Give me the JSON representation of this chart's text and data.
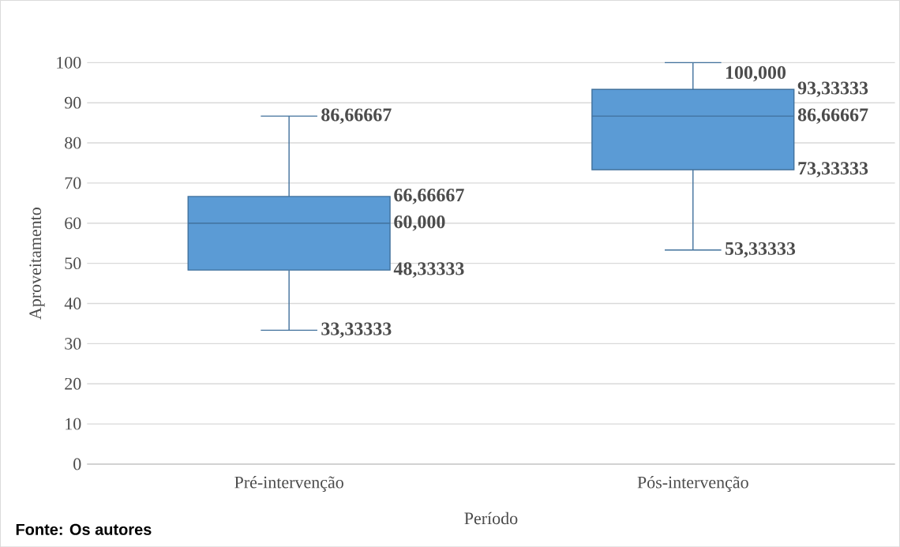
{
  "chart_data": {
    "type": "box",
    "xlabel": "Período",
    "ylabel": "Aproveitamento",
    "categories": [
      "Pré-intervenção",
      "Pós-intervenção"
    ],
    "boxes": [
      {
        "low": 33.33333,
        "q1": 48.33333,
        "median": 60,
        "q3": 66.66667,
        "high": 86.66667
      },
      {
        "low": 53.33333,
        "q1": 73.33333,
        "median": 86.66667,
        "q3": 93.33333,
        "high": 100
      }
    ],
    "value_labels": [
      {
        "low": "33,33333",
        "q1": "48,33333",
        "median": "60,000",
        "q3": "66,66667",
        "high": "86,66667"
      },
      {
        "low": "53,33333",
        "q1": "73,33333",
        "median": "86,66667",
        "q3": "93,33333",
        "high": "100,000"
      }
    ],
    "color": "#5b9bd5",
    "ylim": [
      0,
      100
    ],
    "yticks": [
      0,
      10,
      20,
      30,
      40,
      50,
      60,
      70,
      80,
      90,
      100
    ],
    "grid": "y",
    "annotations": [
      "Fonte: Os autores"
    ]
  }
}
